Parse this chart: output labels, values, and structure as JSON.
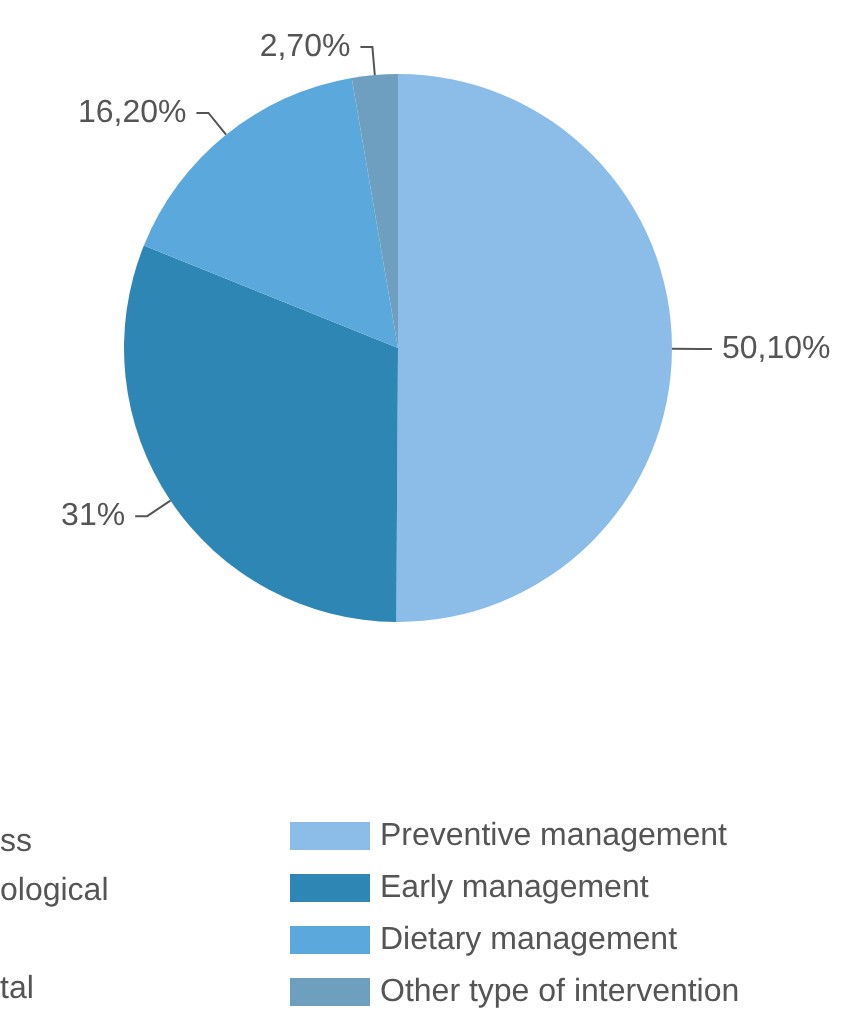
{
  "chart_data": {
    "type": "pie",
    "categories": [
      "Preventive management",
      "Early management",
      "Dietary management",
      "Other type of intervention"
    ],
    "values": [
      50.1,
      31,
      16.2,
      2.7
    ],
    "value_labels": [
      "50,10%",
      "31%",
      "16,20%",
      "2,70%"
    ],
    "colors": [
      "#8bbde8",
      "#2e86b5",
      "#5ba8dc",
      "#6e9fbf"
    ],
    "legend": "bottom",
    "annotations": [
      "ss",
      "ological",
      "tal"
    ]
  }
}
